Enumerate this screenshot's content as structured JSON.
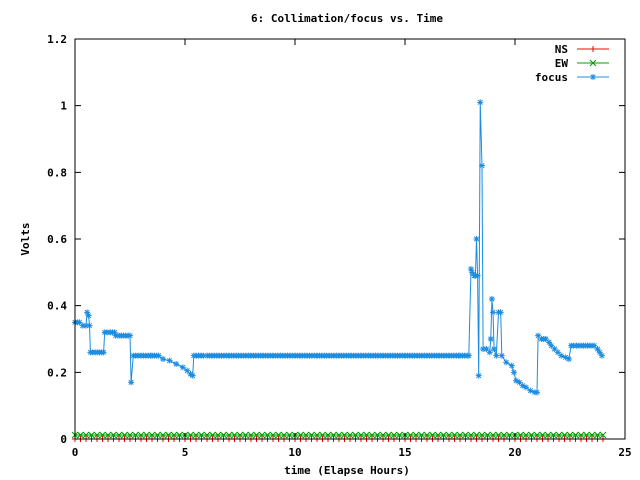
{
  "chart_data": {
    "type": "line",
    "title": "6: Collimation/focus vs. Time",
    "xlabel": "time (Elapse Hours)",
    "ylabel": "Volts",
    "xlim": [
      0,
      25
    ],
    "ylim": [
      0,
      1.2
    ],
    "xticks": [
      "0",
      "5",
      "10",
      "15",
      "20",
      "25"
    ],
    "yticks": [
      "0",
      "0.2",
      "0.4",
      "0.6",
      "0.8",
      "1",
      "1.2"
    ],
    "grid": false,
    "legend": "top-right",
    "series": [
      {
        "name": "NS",
        "color": "#ff0000",
        "marker": "plus",
        "points": [
          [
            0,
            0.0
          ],
          [
            24,
            0.0
          ]
        ],
        "sampled_step": 0.25
      },
      {
        "name": "EW",
        "color": "#00a000",
        "marker": "x",
        "points": [
          [
            0,
            0.012
          ],
          [
            24,
            0.012
          ]
        ],
        "sampled_step": 0.25
      },
      {
        "name": "focus",
        "color": "#1c8ce0",
        "marker": "star",
        "points": [
          [
            0.0,
            0.35
          ],
          [
            0.2,
            0.35
          ],
          [
            0.35,
            0.34
          ],
          [
            0.5,
            0.34
          ],
          [
            0.55,
            0.38
          ],
          [
            0.62,
            0.37
          ],
          [
            0.66,
            0.34
          ],
          [
            0.7,
            0.26
          ],
          [
            1.0,
            0.26
          ],
          [
            1.3,
            0.26
          ],
          [
            1.35,
            0.32
          ],
          [
            1.6,
            0.32
          ],
          [
            1.8,
            0.32
          ],
          [
            1.85,
            0.31
          ],
          [
            2.0,
            0.31
          ],
          [
            2.2,
            0.31
          ],
          [
            2.5,
            0.31
          ],
          [
            2.55,
            0.17
          ],
          [
            2.65,
            0.25
          ],
          [
            3.0,
            0.25
          ],
          [
            3.5,
            0.25
          ],
          [
            3.8,
            0.25
          ],
          [
            4.0,
            0.24
          ],
          [
            4.3,
            0.235
          ],
          [
            4.6,
            0.225
          ],
          [
            4.9,
            0.215
          ],
          [
            5.1,
            0.205
          ],
          [
            5.25,
            0.195
          ],
          [
            5.35,
            0.19
          ],
          [
            5.4,
            0.25
          ],
          [
            6.0,
            0.25
          ],
          [
            7.0,
            0.25
          ],
          [
            8.0,
            0.25
          ],
          [
            9.0,
            0.25
          ],
          [
            10.0,
            0.25
          ],
          [
            11.0,
            0.25
          ],
          [
            12.0,
            0.25
          ],
          [
            13.0,
            0.25
          ],
          [
            14.0,
            0.25
          ],
          [
            15.0,
            0.25
          ],
          [
            16.0,
            0.25
          ],
          [
            17.0,
            0.25
          ],
          [
            17.5,
            0.25
          ],
          [
            17.9,
            0.25
          ],
          [
            18.0,
            0.51
          ],
          [
            18.05,
            0.5
          ],
          [
            18.15,
            0.49
          ],
          [
            18.2,
            0.49
          ],
          [
            18.25,
            0.6
          ],
          [
            18.3,
            0.49
          ],
          [
            18.35,
            0.19
          ],
          [
            18.42,
            1.01
          ],
          [
            18.5,
            0.82
          ],
          [
            18.55,
            0.27
          ],
          [
            18.7,
            0.27
          ],
          [
            18.85,
            0.26
          ],
          [
            18.9,
            0.3
          ],
          [
            18.95,
            0.42
          ],
          [
            19.0,
            0.38
          ],
          [
            19.05,
            0.27
          ],
          [
            19.15,
            0.25
          ],
          [
            19.25,
            0.38
          ],
          [
            19.35,
            0.38
          ],
          [
            19.4,
            0.25
          ],
          [
            19.6,
            0.23
          ],
          [
            19.85,
            0.22
          ],
          [
            19.95,
            0.2
          ],
          [
            20.05,
            0.175
          ],
          [
            20.2,
            0.17
          ],
          [
            20.35,
            0.16
          ],
          [
            20.5,
            0.155
          ],
          [
            20.7,
            0.145
          ],
          [
            20.9,
            0.14
          ],
          [
            21.0,
            0.14
          ],
          [
            21.05,
            0.31
          ],
          [
            21.2,
            0.3
          ],
          [
            21.4,
            0.3
          ],
          [
            21.55,
            0.29
          ],
          [
            21.65,
            0.28
          ],
          [
            21.8,
            0.27
          ],
          [
            21.95,
            0.26
          ],
          [
            22.1,
            0.25
          ],
          [
            22.3,
            0.245
          ],
          [
            22.45,
            0.24
          ],
          [
            22.55,
            0.28
          ],
          [
            22.8,
            0.28
          ],
          [
            23.0,
            0.28
          ],
          [
            23.3,
            0.28
          ],
          [
            23.5,
            0.28
          ],
          [
            23.6,
            0.28
          ],
          [
            23.75,
            0.27
          ],
          [
            23.85,
            0.26
          ],
          [
            23.95,
            0.25
          ]
        ],
        "sampled_step": 0.11
      }
    ]
  }
}
